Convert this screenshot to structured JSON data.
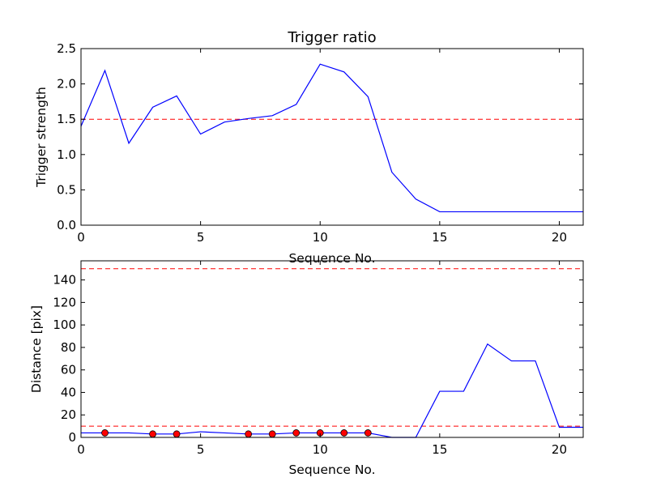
{
  "chart_data": [
    {
      "type": "line",
      "title": "Trigger ratio",
      "xlabel": "Sequence No.",
      "ylabel": "Trigger strength",
      "xlim": [
        0,
        21
      ],
      "ylim": [
        0,
        2.5
      ],
      "xticks": [
        0,
        5,
        10,
        15,
        20
      ],
      "yticks": [
        0.0,
        0.5,
        1.0,
        1.5,
        2.0,
        2.5
      ],
      "ytick_labels": [
        "0.0",
        "0.5",
        "1.0",
        "1.5",
        "2.0",
        "2.5"
      ],
      "grid": false,
      "series": [
        {
          "color": "#0000ff",
          "x": [
            0,
            1,
            2,
            3,
            4,
            5,
            6,
            7,
            8,
            9,
            10,
            11,
            12,
            13,
            14,
            15,
            16,
            17,
            18,
            19,
            20,
            21
          ],
          "values": [
            1.4,
            2.19,
            1.16,
            1.67,
            1.83,
            1.29,
            1.46,
            1.51,
            1.55,
            1.71,
            2.28,
            2.17,
            1.82,
            0.75,
            0.37,
            0.19,
            0.19,
            0.19,
            0.19,
            0.19,
            0.19,
            0.19
          ]
        }
      ],
      "threshold_lines": [
        {
          "y": 1.5,
          "color": "#ff0000",
          "style": "dashed"
        }
      ]
    },
    {
      "type": "line",
      "title": "",
      "xlabel": "Sequence No.",
      "ylabel": "Distance [pix]",
      "xlim": [
        0,
        21
      ],
      "ylim": [
        0,
        157
      ],
      "xticks": [
        0,
        5,
        10,
        15,
        20
      ],
      "yticks": [
        0,
        20,
        40,
        60,
        80,
        100,
        120,
        140
      ],
      "grid": false,
      "series": [
        {
          "color": "#0000ff",
          "x": [
            0,
            1,
            2,
            3,
            4,
            5,
            6,
            7,
            8,
            9,
            10,
            11,
            12,
            13,
            14,
            15,
            16,
            17,
            18,
            19,
            20,
            21
          ],
          "values": [
            4,
            4,
            4,
            3,
            3,
            5,
            4,
            3,
            3,
            4,
            4,
            4,
            4,
            0,
            0,
            41,
            41,
            83,
            68,
            68,
            9,
            9
          ]
        }
      ],
      "markers": {
        "color": "#ff0000",
        "x": [
          1,
          3,
          4,
          7,
          8,
          9,
          10,
          11,
          12
        ],
        "values": [
          4,
          3,
          3,
          3,
          3,
          4,
          4,
          4,
          4
        ]
      },
      "threshold_lines": [
        {
          "y": 150,
          "color": "#ff0000",
          "style": "dashed"
        },
        {
          "y": 10,
          "color": "#ff0000",
          "style": "dashed"
        }
      ]
    }
  ]
}
